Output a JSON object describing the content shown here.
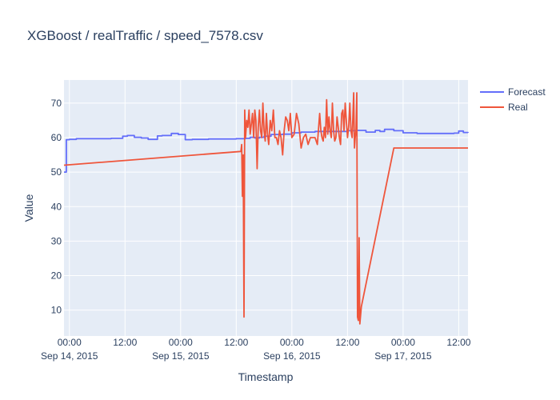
{
  "chart_data": {
    "type": "line",
    "title": "XGBoost / realTraffic / speed_7578.csv",
    "xlabel": "Timestamp",
    "ylabel": "Value",
    "x_range": [
      "2015-09-13T22:50",
      "2015-09-17T14:00"
    ],
    "ylim": [
      2.5,
      76.7
    ],
    "y_ticks": [
      10,
      20,
      30,
      40,
      50,
      60,
      70
    ],
    "x_ticks": [
      {
        "at": "2015-09-14T00:00",
        "line1": "00:00",
        "line2": "Sep 14, 2015"
      },
      {
        "at": "2015-09-14T12:00",
        "line1": "12:00",
        "line2": ""
      },
      {
        "at": "2015-09-15T00:00",
        "line1": "00:00",
        "line2": "Sep 15, 2015"
      },
      {
        "at": "2015-09-15T12:00",
        "line1": "12:00",
        "line2": ""
      },
      {
        "at": "2015-09-16T00:00",
        "line1": "00:00",
        "line2": "Sep 16, 2015"
      },
      {
        "at": "2015-09-16T12:00",
        "line1": "12:00",
        "line2": ""
      },
      {
        "at": "2015-09-17T00:00",
        "line1": "00:00",
        "line2": "Sep 17, 2015"
      },
      {
        "at": "2015-09-17T12:00",
        "line1": "12:00",
        "line2": ""
      }
    ],
    "grid": true,
    "legend": "top-right",
    "series": [
      {
        "name": "Forecast",
        "color": "#636efa",
        "shape": "hv",
        "x": [
          "2015-09-13T22:50",
          "2015-09-13T23:00",
          "2015-09-13T23:20",
          "2015-09-14T00:00",
          "2015-09-14T01:30",
          "2015-09-14T03:30",
          "2015-09-14T06:30",
          "2015-09-14T09:00",
          "2015-09-14T11:30",
          "2015-09-14T12:30",
          "2015-09-14T14:00",
          "2015-09-14T15:30",
          "2015-09-14T17:00",
          "2015-09-14T19:00",
          "2015-09-14T20:00",
          "2015-09-14T22:00",
          "2015-09-14T23:30",
          "2015-09-15T01:00",
          "2015-09-15T02:30",
          "2015-09-15T06:00",
          "2015-09-15T09:00",
          "2015-09-15T12:00",
          "2015-09-15T14:00",
          "2015-09-15T15:00",
          "2015-09-15T16:00",
          "2015-09-15T17:00",
          "2015-09-15T18:00",
          "2015-09-15T19:30",
          "2015-09-15T22:00",
          "2015-09-16T00:00",
          "2015-09-16T02:00",
          "2015-09-16T05:00",
          "2015-09-16T09:00",
          "2015-09-16T12:00",
          "2015-09-16T14:00",
          "2015-09-16T16:00",
          "2015-09-16T18:00",
          "2015-09-16T19:00",
          "2015-09-16T20:00",
          "2015-09-16T22:00",
          "2015-09-17T00:00",
          "2015-09-17T03:00",
          "2015-09-17T06:00",
          "2015-09-17T09:00",
          "2015-09-17T11:00",
          "2015-09-17T12:00",
          "2015-09-17T13:00",
          "2015-09-17T14:00"
        ],
        "y": [
          50,
          50,
          59.4,
          59.5,
          59.7,
          59.7,
          59.7,
          59.8,
          60.4,
          60.6,
          60.1,
          59.9,
          59.5,
          60.5,
          60.6,
          61.2,
          60.9,
          59.4,
          59.5,
          59.6,
          59.6,
          59.7,
          59.8,
          60.1,
          59.9,
          60.1,
          60.4,
          60.9,
          61.0,
          61.4,
          61.6,
          61.8,
          61.8,
          62.0,
          62.1,
          61.6,
          62.1,
          61.8,
          62.4,
          62.0,
          61.4,
          61.2,
          61.2,
          61.2,
          61.3,
          61.9,
          61.5,
          61.4
        ]
      },
      {
        "name": "Real",
        "color": "#ef553b",
        "shape": "linear",
        "x": [
          "2015-09-13T22:50",
          "2015-09-15T13:00",
          "2015-09-15T13:10",
          "2015-09-15T13:20",
          "2015-09-15T13:30",
          "2015-09-15T13:40",
          "2015-09-15T13:50",
          "2015-09-15T14:00",
          "2015-09-15T14:15",
          "2015-09-15T14:30",
          "2015-09-15T14:45",
          "2015-09-15T15:00",
          "2015-09-15T15:15",
          "2015-09-15T15:30",
          "2015-09-15T15:45",
          "2015-09-15T16:00",
          "2015-09-15T16:15",
          "2015-09-15T16:30",
          "2015-09-15T16:45",
          "2015-09-15T17:00",
          "2015-09-15T17:15",
          "2015-09-15T17:30",
          "2015-09-15T17:45",
          "2015-09-15T18:00",
          "2015-09-15T18:15",
          "2015-09-15T18:30",
          "2015-09-15T18:45",
          "2015-09-15T19:00",
          "2015-09-15T19:20",
          "2015-09-15T19:40",
          "2015-09-15T20:00",
          "2015-09-15T20:20",
          "2015-09-15T20:40",
          "2015-09-15T21:00",
          "2015-09-15T21:20",
          "2015-09-15T21:40",
          "2015-09-15T22:00",
          "2015-09-15T22:20",
          "2015-09-15T22:40",
          "2015-09-15T23:00",
          "2015-09-15T23:20",
          "2015-09-15T23:40",
          "2015-09-16T00:00",
          "2015-09-16T00:30",
          "2015-09-16T01:00",
          "2015-09-16T01:30",
          "2015-09-16T02:00",
          "2015-09-16T02:30",
          "2015-09-16T03:00",
          "2015-09-16T03:30",
          "2015-09-16T04:00",
          "2015-09-16T04:30",
          "2015-09-16T05:00",
          "2015-09-16T05:30",
          "2015-09-16T06:00",
          "2015-09-16T06:15",
          "2015-09-16T06:30",
          "2015-09-16T06:45",
          "2015-09-16T07:00",
          "2015-09-16T07:15",
          "2015-09-16T07:30",
          "2015-09-16T07:45",
          "2015-09-16T08:00",
          "2015-09-16T08:15",
          "2015-09-16T08:30",
          "2015-09-16T08:45",
          "2015-09-16T09:00",
          "2015-09-16T09:15",
          "2015-09-16T09:30",
          "2015-09-16T09:45",
          "2015-09-16T10:00",
          "2015-09-16T10:15",
          "2015-09-16T10:30",
          "2015-09-16T10:45",
          "2015-09-16T11:00",
          "2015-09-16T11:15",
          "2015-09-16T11:30",
          "2015-09-16T11:45",
          "2015-09-16T12:00",
          "2015-09-16T12:15",
          "2015-09-16T12:30",
          "2015-09-16T12:45",
          "2015-09-16T13:00",
          "2015-09-16T13:10",
          "2015-09-16T13:20",
          "2015-09-16T13:30",
          "2015-09-16T13:40",
          "2015-09-16T13:50",
          "2015-09-16T14:00",
          "2015-09-16T14:10",
          "2015-09-16T14:20",
          "2015-09-16T14:30",
          "2015-09-16T14:40",
          "2015-09-16T15:00",
          "2015-09-16T22:00",
          "2015-09-17T14:00"
        ],
        "y": [
          52,
          56,
          58,
          43,
          55,
          8,
          68,
          60,
          65,
          63,
          68,
          61,
          64,
          67,
          60,
          68,
          65,
          51,
          63,
          68,
          62,
          60,
          70,
          62,
          59,
          67,
          61,
          58,
          65,
          62,
          68,
          60,
          60,
          58,
          62,
          60,
          55,
          62,
          66,
          65,
          62,
          67,
          60,
          61,
          67,
          64,
          57,
          60,
          61,
          58,
          60,
          60,
          60,
          58,
          67,
          62,
          60,
          59,
          63,
          60,
          71,
          61,
          66,
          62,
          60,
          70,
          62,
          59,
          60,
          66,
          63,
          60,
          58,
          67,
          68,
          62,
          70,
          65,
          60,
          63,
          70,
          62,
          60,
          66,
          73,
          57,
          60,
          62,
          73,
          8,
          7,
          31,
          6,
          11,
          57,
          57
        ]
      }
    ]
  }
}
